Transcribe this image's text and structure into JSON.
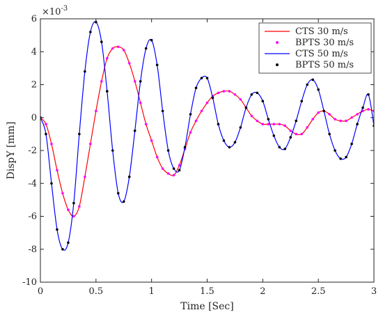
{
  "chart_data": {
    "type": "line",
    "xlabel": "Time [Sec]",
    "ylabel": "DispY [mm]",
    "xlim": [
      0,
      3
    ],
    "ylim": [
      -10,
      6
    ],
    "y_multiplier": "×10⁻³",
    "y_exponent_label_base": "×10",
    "y_exponent_label_power": "-3",
    "grid": false,
    "legend_position": "top-right",
    "x_ticks": [
      0,
      0.5,
      1,
      1.5,
      2,
      2.5,
      3
    ],
    "x_tick_labels": [
      "0",
      "0.5",
      "1",
      "1.5",
      "2",
      "2.5",
      "3"
    ],
    "y_ticks": [
      -10,
      -8,
      -6,
      -4,
      -2,
      0,
      2,
      4,
      6
    ],
    "y_tick_labels": [
      "-10",
      "-8",
      "-6",
      "-4",
      "-2",
      "0",
      "2",
      "4",
      "6"
    ],
    "series": [
      {
        "name": "CTS 30 m/s",
        "style": "line",
        "color": "#ff0000",
        "x": [
          0,
          0.05,
          0.1,
          0.15,
          0.2,
          0.25,
          0.3,
          0.35,
          0.4,
          0.45,
          0.5,
          0.55,
          0.6,
          0.65,
          0.7,
          0.75,
          0.8,
          0.85,
          0.9,
          0.95,
          1.0,
          1.05,
          1.1,
          1.15,
          1.2,
          1.25,
          1.3,
          1.35,
          1.4,
          1.45,
          1.5,
          1.55,
          1.6,
          1.65,
          1.7,
          1.75,
          1.8,
          1.85,
          1.9,
          1.95,
          2.0,
          2.05,
          2.1,
          2.15,
          2.2,
          2.25,
          2.3,
          2.35,
          2.4,
          2.45,
          2.5,
          2.55,
          2.6,
          2.65,
          2.7,
          2.75,
          2.8,
          2.85,
          2.9,
          2.95,
          3.0
        ],
        "y": [
          0,
          -0.4,
          -1.6,
          -3.2,
          -4.6,
          -5.6,
          -6.0,
          -5.4,
          -3.6,
          -1.6,
          0.4,
          2.2,
          3.6,
          4.2,
          4.3,
          4.1,
          3.3,
          2.2,
          0.9,
          -0.4,
          -1.4,
          -2.4,
          -3.1,
          -3.4,
          -3.5,
          -2.9,
          -1.9,
          -0.9,
          -0.2,
          0.4,
          0.9,
          1.3,
          1.5,
          1.6,
          1.6,
          1.4,
          1.1,
          0.6,
          0.1,
          -0.2,
          -0.4,
          -0.4,
          -0.4,
          -0.4,
          -0.5,
          -0.8,
          -1.0,
          -1.0,
          -0.6,
          -0.1,
          0.3,
          0.4,
          0.2,
          -0.1,
          -0.2,
          -0.2,
          0.0,
          0.2,
          0.4,
          0.5,
          0.4
        ]
      },
      {
        "name": "BPTS 30 m/s",
        "style": "markers",
        "color": "#ff00ff",
        "x": [
          0,
          0.05,
          0.1,
          0.15,
          0.2,
          0.25,
          0.3,
          0.35,
          0.4,
          0.45,
          0.5,
          0.55,
          0.6,
          0.65,
          0.7,
          0.75,
          0.8,
          0.85,
          0.9,
          0.95,
          1.0,
          1.05,
          1.1,
          1.15,
          1.2,
          1.25,
          1.3,
          1.35,
          1.4,
          1.45,
          1.5,
          1.55,
          1.6,
          1.65,
          1.7,
          1.75,
          1.8,
          1.85,
          1.9,
          1.95,
          2.0,
          2.05,
          2.1,
          2.15,
          2.2,
          2.25,
          2.3,
          2.35,
          2.4,
          2.45,
          2.5,
          2.55,
          2.6,
          2.65,
          2.7,
          2.75,
          2.8,
          2.85,
          2.9,
          2.95,
          3.0
        ],
        "y": [
          0,
          -0.4,
          -1.6,
          -3.2,
          -4.6,
          -5.6,
          -6.0,
          -5.4,
          -3.6,
          -1.6,
          0.4,
          2.2,
          3.6,
          4.2,
          4.3,
          4.1,
          3.3,
          2.2,
          0.9,
          -0.4,
          -1.4,
          -2.4,
          -3.1,
          -3.4,
          -3.5,
          -2.9,
          -1.9,
          -0.9,
          -0.2,
          0.4,
          0.9,
          1.3,
          1.5,
          1.6,
          1.6,
          1.4,
          1.1,
          0.6,
          0.1,
          -0.2,
          -0.4,
          -0.4,
          -0.4,
          -0.4,
          -0.5,
          -0.8,
          -1.0,
          -1.0,
          -0.6,
          -0.1,
          0.3,
          0.4,
          0.2,
          -0.1,
          -0.2,
          -0.2,
          0.0,
          0.2,
          0.4,
          0.5,
          0.4
        ]
      },
      {
        "name": "CTS 50 m/s",
        "style": "line",
        "color": "#0000ff",
        "x": [
          0,
          0.05,
          0.1,
          0.15,
          0.2,
          0.25,
          0.3,
          0.35,
          0.4,
          0.45,
          0.5,
          0.55,
          0.6,
          0.65,
          0.7,
          0.75,
          0.8,
          0.85,
          0.9,
          0.95,
          1.0,
          1.05,
          1.1,
          1.15,
          1.2,
          1.25,
          1.3,
          1.35,
          1.4,
          1.45,
          1.5,
          1.55,
          1.6,
          1.65,
          1.7,
          1.75,
          1.8,
          1.85,
          1.9,
          1.95,
          2.0,
          2.05,
          2.1,
          2.15,
          2.2,
          2.25,
          2.3,
          2.35,
          2.4,
          2.45,
          2.5,
          2.55,
          2.6,
          2.65,
          2.7,
          2.75,
          2.8,
          2.85,
          2.9,
          2.95,
          3.0
        ],
        "y": [
          0,
          -1.0,
          -4.0,
          -6.8,
          -8.0,
          -7.6,
          -5.2,
          -1.0,
          2.8,
          5.2,
          5.8,
          4.6,
          1.6,
          -2.0,
          -4.6,
          -5.1,
          -3.6,
          -0.8,
          2.2,
          4.2,
          4.7,
          3.2,
          0.4,
          -2.0,
          -3.1,
          -3.2,
          -1.8,
          0.2,
          1.8,
          2.4,
          2.4,
          1.2,
          -0.4,
          -1.4,
          -1.8,
          -1.5,
          -0.6,
          0.6,
          1.4,
          1.5,
          1.0,
          -0.1,
          -1.1,
          -1.8,
          -1.9,
          -1.2,
          -0.2,
          1.0,
          2.0,
          2.3,
          1.7,
          0.4,
          -1.0,
          -2.0,
          -2.5,
          -2.4,
          -1.6,
          -0.4,
          0.6,
          1.4,
          -0.5
        ]
      },
      {
        "name": "BPTS 50 m/s",
        "style": "markers",
        "color": "#000000",
        "x": [
          0,
          0.05,
          0.1,
          0.15,
          0.2,
          0.25,
          0.3,
          0.35,
          0.4,
          0.45,
          0.5,
          0.55,
          0.6,
          0.65,
          0.7,
          0.75,
          0.8,
          0.85,
          0.9,
          0.95,
          1.0,
          1.05,
          1.1,
          1.15,
          1.2,
          1.25,
          1.3,
          1.35,
          1.4,
          1.45,
          1.5,
          1.55,
          1.6,
          1.65,
          1.7,
          1.75,
          1.8,
          1.85,
          1.9,
          1.95,
          2.0,
          2.05,
          2.1,
          2.15,
          2.2,
          2.25,
          2.3,
          2.35,
          2.4,
          2.45,
          2.5,
          2.55,
          2.6,
          2.65,
          2.7,
          2.75,
          2.8,
          2.85,
          2.9,
          2.95,
          3.0
        ],
        "y": [
          0,
          -1.0,
          -4.0,
          -6.8,
          -8.0,
          -7.6,
          -5.2,
          -1.0,
          2.8,
          5.2,
          5.8,
          4.6,
          1.6,
          -2.0,
          -4.6,
          -5.1,
          -3.6,
          -0.8,
          2.2,
          4.2,
          4.7,
          3.2,
          0.4,
          -2.0,
          -3.1,
          -3.2,
          -1.8,
          0.2,
          1.8,
          2.4,
          2.4,
          1.2,
          -0.4,
          -1.4,
          -1.8,
          -1.5,
          -0.6,
          0.6,
          1.4,
          1.5,
          1.0,
          -0.1,
          -1.1,
          -1.8,
          -1.9,
          -1.2,
          -0.2,
          1.0,
          2.0,
          2.3,
          1.7,
          0.4,
          -1.0,
          -2.0,
          -2.5,
          -2.4,
          -1.6,
          -0.4,
          0.6,
          1.4,
          -0.5
        ]
      }
    ]
  }
}
